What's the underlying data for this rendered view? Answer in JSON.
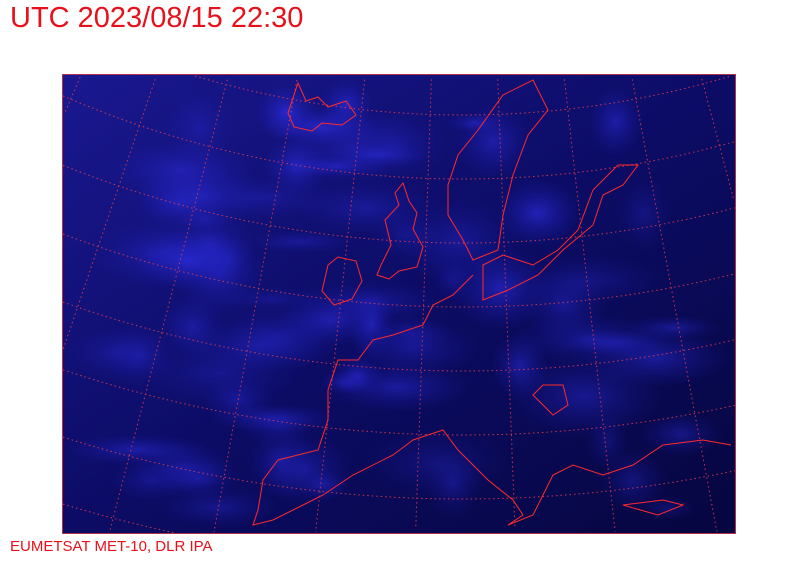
{
  "header": {
    "title": "UTC 2023/08/15 22:30"
  },
  "footer": {
    "credit": "EUMETSAT MET-10, DLR IPA"
  },
  "map": {
    "type": "satellite-image",
    "projection_grid": "dotted lat/lon graticule",
    "colors": {
      "background": "#0a0a5a",
      "clouds": "#2a2ae0",
      "coastline": "#ff2020",
      "grid": "#ff3030",
      "text": "#e8101a"
    }
  }
}
